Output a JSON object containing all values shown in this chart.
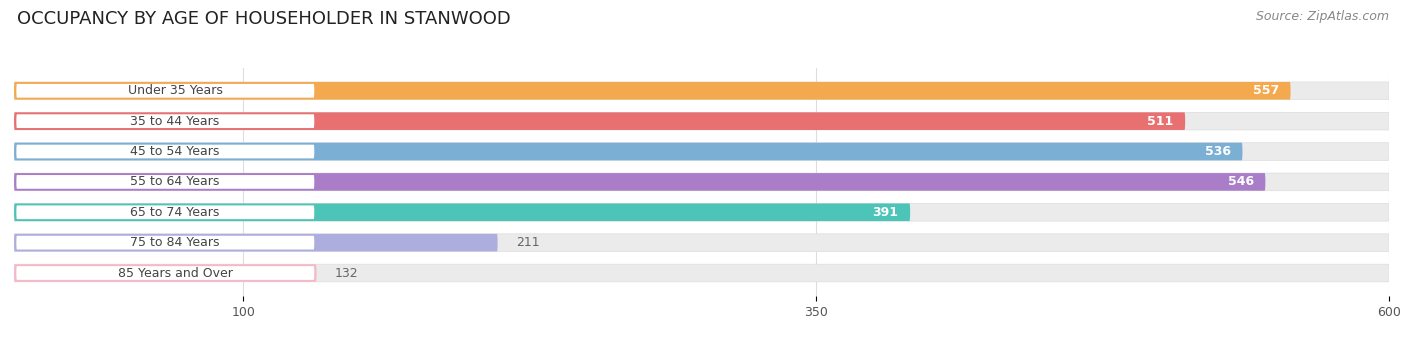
{
  "title": "OCCUPANCY BY AGE OF HOUSEHOLDER IN STANWOOD",
  "source": "Source: ZipAtlas.com",
  "categories": [
    "Under 35 Years",
    "35 to 44 Years",
    "45 to 54 Years",
    "55 to 64 Years",
    "65 to 74 Years",
    "75 to 84 Years",
    "85 Years and Over"
  ],
  "values": [
    557,
    511,
    536,
    546,
    391,
    211,
    132
  ],
  "bar_colors": [
    "#F5A94E",
    "#E87070",
    "#7BAFD4",
    "#A97DC8",
    "#4DC4B8",
    "#AEAEDE",
    "#F5B8C8"
  ],
  "track_color": "#EBEBEB",
  "track_border_color": "#DCDCDC",
  "xlim": [
    0,
    600
  ],
  "xticks": [
    100,
    350,
    600
  ],
  "value_label_color_inside": "#FFFFFF",
  "value_label_color_outside": "#666666",
  "title_fontsize": 13,
  "source_fontsize": 9,
  "label_fontsize": 9,
  "value_fontsize": 9,
  "bar_height": 0.58,
  "background_color": "#FFFFFF",
  "pill_bg": "#FFFFFF",
  "pill_text_color": "#444444",
  "grid_color": "#DDDDDD"
}
